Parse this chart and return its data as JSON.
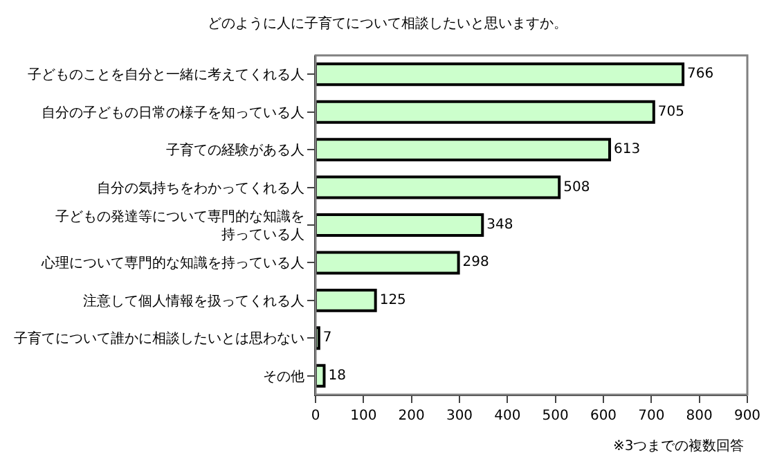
{
  "chart_data": {
    "type": "bar",
    "orientation": "horizontal",
    "title": "どのように人に子育てについて相談したいと思いますか。",
    "categories": [
      "子どものことを自分と一緒に考えてくれる人",
      "自分の子どもの日常の様子を知っている人",
      "子育ての経験がある人",
      "自分の気持ちをわかってくれる人",
      "子どもの発達等について専門的な知識を持っている人",
      "心理について専門的な知識を持っている人",
      "注意して個人情報を扱ってくれる人",
      "子育てについて誰かに相談したいとは思わない",
      "その他"
    ],
    "values": [
      766,
      705,
      613,
      508,
      348,
      298,
      125,
      7,
      18
    ],
    "color": "#ccffcc",
    "xlim": [
      0,
      900
    ],
    "xticks": [
      0,
      100,
      200,
      300,
      400,
      500,
      600,
      700,
      800,
      900
    ],
    "data_labels": true,
    "annotations": [
      "※3つまでの複数回答"
    ]
  }
}
